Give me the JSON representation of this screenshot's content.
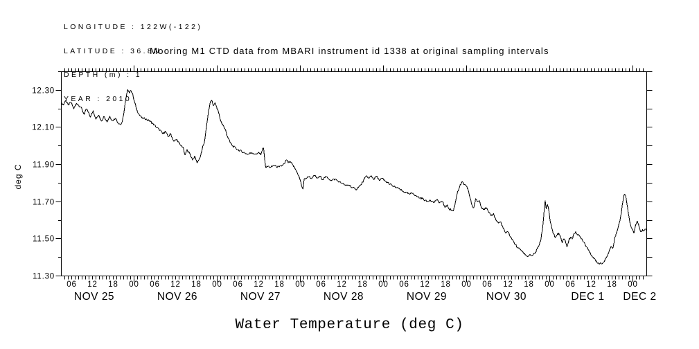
{
  "meta": {
    "lines": [
      "LONGITUDE : 122W(-122)",
      "LATITUDE : 36.8N",
      "DEPTH (m) : 1",
      "YEAR : 2010"
    ]
  },
  "chart_data": {
    "type": "line",
    "title": "Mooring M1 CTD data from MBARI instrument id 1338 at original sampling intervals",
    "bottom_title": "Water Temperature (deg C)",
    "ylabel": "deg C",
    "ylim": [
      11.3,
      12.4
    ],
    "y_major_tick_labels": [
      "12.30",
      "12.10",
      "11.90",
      "11.70",
      "11.50",
      "11.30"
    ],
    "y_minor_tick_step": 0.1,
    "grid": false,
    "legend": "none",
    "line_color": "#000000",
    "background_color": "#ffffff",
    "noise_amplitude": 0.006,
    "x_axis": {
      "unit": "hours from NOV 25 00:00, year 2010",
      "start_hour": 3,
      "end_hour": 172,
      "minor_tick_every_hours": 1,
      "major_tick_every_hours": 24,
      "hour_label_every_hours": 6,
      "hour_label_pattern": [
        "06",
        "12",
        "18",
        "00"
      ],
      "days": [
        {
          "label": "NOV 25",
          "start_hour": 0,
          "center_hour": 12.5
        },
        {
          "label": "NOV 26",
          "start_hour": 24,
          "center_hour": 36.5
        },
        {
          "label": "NOV 27",
          "start_hour": 48,
          "center_hour": 60.5
        },
        {
          "label": "NOV 28",
          "start_hour": 72,
          "center_hour": 84.5
        },
        {
          "label": "NOV 29",
          "start_hour": 96,
          "center_hour": 108.5
        },
        {
          "label": "NOV 30",
          "start_hour": 120,
          "center_hour": 131.5
        },
        {
          "label": "DEC 1",
          "start_hour": 144,
          "center_hour": 155
        },
        {
          "label": "DEC 2",
          "start_hour": 168,
          "center_hour": 170
        }
      ]
    },
    "series": [
      {
        "name": "water_temperature_degC",
        "points": [
          [
            3,
            12.235
          ],
          [
            3.6,
            12.22
          ],
          [
            4.2,
            12.245
          ],
          [
            5,
            12.22
          ],
          [
            5.8,
            12.235
          ],
          [
            6.6,
            12.2
          ],
          [
            7.4,
            12.23
          ],
          [
            8.6,
            12.21
          ],
          [
            9.6,
            12.17
          ],
          [
            10.3,
            12.2
          ],
          [
            11.4,
            12.155
          ],
          [
            12.2,
            12.19
          ],
          [
            13,
            12.145
          ],
          [
            13.8,
            12.165
          ],
          [
            14.6,
            12.135
          ],
          [
            15.4,
            12.16
          ],
          [
            16.2,
            12.13
          ],
          [
            17,
            12.16
          ],
          [
            17.8,
            12.135
          ],
          [
            18.6,
            12.15
          ],
          [
            19.4,
            12.125
          ],
          [
            20.2,
            12.115
          ],
          [
            20.6,
            12.13
          ],
          [
            21,
            12.17
          ],
          [
            21.6,
            12.25
          ],
          [
            22.2,
            12.305
          ],
          [
            22.7,
            12.285
          ],
          [
            23.1,
            12.3
          ],
          [
            23.5,
            12.285
          ],
          [
            24,
            12.245
          ],
          [
            24.8,
            12.195
          ],
          [
            25.6,
            12.165
          ],
          [
            26.4,
            12.15
          ],
          [
            27.4,
            12.145
          ],
          [
            28.4,
            12.135
          ],
          [
            29.5,
            12.12
          ],
          [
            30.5,
            12.1
          ],
          [
            31.5,
            12.085
          ],
          [
            32.3,
            12.065
          ],
          [
            33,
            12.08
          ],
          [
            33.8,
            12.05
          ],
          [
            34.6,
            12.065
          ],
          [
            35.5,
            12.025
          ],
          [
            36.4,
            12.035
          ],
          [
            37.3,
            12.005
          ],
          [
            38.1,
            11.995
          ],
          [
            38.7,
            11.95
          ],
          [
            39.3,
            11.98
          ],
          [
            40.2,
            11.955
          ],
          [
            40.9,
            11.925
          ],
          [
            41.5,
            11.945
          ],
          [
            42.2,
            11.91
          ],
          [
            42.7,
            11.925
          ],
          [
            43.2,
            11.945
          ],
          [
            43.7,
            11.985
          ],
          [
            44.3,
            12.02
          ],
          [
            44.9,
            12.1
          ],
          [
            45.5,
            12.19
          ],
          [
            46.1,
            12.24
          ],
          [
            46.5,
            12.245
          ],
          [
            46.9,
            12.215
          ],
          [
            47.4,
            12.235
          ],
          [
            47.8,
            12.21
          ],
          [
            48.4,
            12.18
          ],
          [
            49,
            12.135
          ],
          [
            49.6,
            12.115
          ],
          [
            50.3,
            12.09
          ],
          [
            51,
            12.05
          ],
          [
            51.7,
            12.02
          ],
          [
            52.5,
            12
          ],
          [
            53.5,
            11.985
          ],
          [
            54.5,
            11.975
          ],
          [
            55.7,
            11.965
          ],
          [
            56.9,
            11.955
          ],
          [
            58,
            11.965
          ],
          [
            59,
            11.955
          ],
          [
            60,
            11.965
          ],
          [
            60.6,
            11.95
          ],
          [
            61.1,
            11.985
          ],
          [
            61.4,
            11.99
          ],
          [
            61.7,
            11.93
          ],
          [
            62,
            11.885
          ],
          [
            62.7,
            11.89
          ],
          [
            63.5,
            11.885
          ],
          [
            64.3,
            11.895
          ],
          [
            65.1,
            11.888
          ],
          [
            65.9,
            11.885
          ],
          [
            66.7,
            11.895
          ],
          [
            67.5,
            11.905
          ],
          [
            68,
            11.925
          ],
          [
            68.5,
            11.91
          ],
          [
            69.1,
            11.915
          ],
          [
            69.7,
            11.9
          ],
          [
            70.4,
            11.88
          ],
          [
            71.1,
            11.858
          ],
          [
            71.9,
            11.82
          ],
          [
            72.5,
            11.778
          ],
          [
            72.8,
            11.768
          ],
          [
            73.1,
            11.82
          ],
          [
            73.7,
            11.826
          ],
          [
            74.5,
            11.835
          ],
          [
            75.3,
            11.824
          ],
          [
            76.1,
            11.84
          ],
          [
            76.9,
            11.826
          ],
          [
            77.7,
            11.836
          ],
          [
            78.5,
            11.82
          ],
          [
            79.3,
            11.835
          ],
          [
            80.1,
            11.824
          ],
          [
            81.1,
            11.815
          ],
          [
            82.1,
            11.822
          ],
          [
            83.1,
            11.806
          ],
          [
            84.1,
            11.8
          ],
          [
            85.1,
            11.786
          ],
          [
            86.1,
            11.79
          ],
          [
            87.1,
            11.775
          ],
          [
            88,
            11.765
          ],
          [
            88.7,
            11.776
          ],
          [
            89.5,
            11.79
          ],
          [
            90.3,
            11.816
          ],
          [
            91.2,
            11.84
          ],
          [
            91.8,
            11.824
          ],
          [
            92.5,
            11.84
          ],
          [
            93.2,
            11.82
          ],
          [
            94,
            11.836
          ],
          [
            94.8,
            11.815
          ],
          [
            95.6,
            11.825
          ],
          [
            96.5,
            11.81
          ],
          [
            97.5,
            11.8
          ],
          [
            98.5,
            11.786
          ],
          [
            99.5,
            11.776
          ],
          [
            100.5,
            11.77
          ],
          [
            101.5,
            11.756
          ],
          [
            102.5,
            11.75
          ],
          [
            103.5,
            11.74
          ],
          [
            104.5,
            11.746
          ],
          [
            105.5,
            11.73
          ],
          [
            106.5,
            11.72
          ],
          [
            107.5,
            11.716
          ],
          [
            108.5,
            11.7
          ],
          [
            109.5,
            11.71
          ],
          [
            110.5,
            11.695
          ],
          [
            111.3,
            11.71
          ],
          [
            112.1,
            11.695
          ],
          [
            113,
            11.7
          ],
          [
            113.8,
            11.67
          ],
          [
            114.4,
            11.682
          ],
          [
            115,
            11.66
          ],
          [
            115.7,
            11.654
          ],
          [
            116.2,
            11.65
          ],
          [
            116.8,
            11.7
          ],
          [
            117.4,
            11.755
          ],
          [
            118,
            11.78
          ],
          [
            118.5,
            11.8
          ],
          [
            118.9,
            11.805
          ],
          [
            119.4,
            11.79
          ],
          [
            119.9,
            11.783
          ],
          [
            120.4,
            11.768
          ],
          [
            121,
            11.72
          ],
          [
            121.7,
            11.673
          ],
          [
            122.1,
            11.668
          ],
          [
            122.6,
            11.715
          ],
          [
            123.1,
            11.7
          ],
          [
            123.7,
            11.706
          ],
          [
            124.3,
            11.67
          ],
          [
            125,
            11.66
          ],
          [
            125.7,
            11.666
          ],
          [
            126.4,
            11.64
          ],
          [
            127.1,
            11.625
          ],
          [
            127.8,
            11.635
          ],
          [
            128.5,
            11.6
          ],
          [
            129.2,
            11.586
          ],
          [
            129.9,
            11.59
          ],
          [
            130.6,
            11.555
          ],
          [
            131.3,
            11.53
          ],
          [
            132,
            11.536
          ],
          [
            132.7,
            11.51
          ],
          [
            133.4,
            11.49
          ],
          [
            134.1,
            11.47
          ],
          [
            134.8,
            11.45
          ],
          [
            135.5,
            11.445
          ],
          [
            136.2,
            11.43
          ],
          [
            136.9,
            11.415
          ],
          [
            137.6,
            11.405
          ],
          [
            138.3,
            11.415
          ],
          [
            139,
            11.408
          ],
          [
            139.7,
            11.42
          ],
          [
            140.4,
            11.445
          ],
          [
            141,
            11.468
          ],
          [
            141.5,
            11.5
          ],
          [
            142,
            11.565
          ],
          [
            142.4,
            11.655
          ],
          [
            142.7,
            11.705
          ],
          [
            143,
            11.66
          ],
          [
            143.3,
            11.688
          ],
          [
            143.6,
            11.668
          ],
          [
            144.1,
            11.6
          ],
          [
            144.6,
            11.558
          ],
          [
            145.1,
            11.528
          ],
          [
            145.6,
            11.506
          ],
          [
            146.1,
            11.52
          ],
          [
            146.6,
            11.53
          ],
          [
            147.1,
            11.51
          ],
          [
            147.6,
            11.476
          ],
          [
            148.1,
            11.5
          ],
          [
            148.5,
            11.49
          ],
          [
            149,
            11.456
          ],
          [
            149.5,
            11.49
          ],
          [
            150,
            11.51
          ],
          [
            150.5,
            11.5
          ],
          [
            151,
            11.526
          ],
          [
            151.5,
            11.54
          ],
          [
            152,
            11.52
          ],
          [
            152.6,
            11.515
          ],
          [
            153.3,
            11.5
          ],
          [
            154.1,
            11.476
          ],
          [
            154.9,
            11.45
          ],
          [
            155.7,
            11.425
          ],
          [
            156.5,
            11.4
          ],
          [
            157.3,
            11.38
          ],
          [
            158.1,
            11.37
          ],
          [
            158.9,
            11.365
          ],
          [
            159.7,
            11.376
          ],
          [
            160.4,
            11.4
          ],
          [
            161.1,
            11.43
          ],
          [
            161.7,
            11.46
          ],
          [
            162.2,
            11.446
          ],
          [
            162.7,
            11.5
          ],
          [
            163.2,
            11.53
          ],
          [
            163.7,
            11.556
          ],
          [
            164.3,
            11.6
          ],
          [
            164.8,
            11.66
          ],
          [
            165.2,
            11.71
          ],
          [
            165.6,
            11.742
          ],
          [
            166,
            11.728
          ],
          [
            166.5,
            11.665
          ],
          [
            167.1,
            11.59
          ],
          [
            167.7,
            11.556
          ],
          [
            168.3,
            11.53
          ],
          [
            168.8,
            11.576
          ],
          [
            169.3,
            11.596
          ],
          [
            169.8,
            11.566
          ],
          [
            170.3,
            11.536
          ],
          [
            170.8,
            11.55
          ],
          [
            171.3,
            11.545
          ],
          [
            171.7,
            11.552
          ],
          [
            172,
            11.54
          ]
        ]
      }
    ]
  }
}
